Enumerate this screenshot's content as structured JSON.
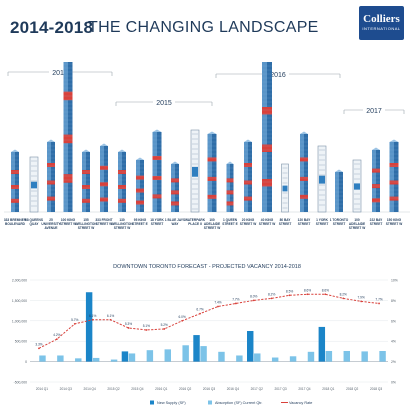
{
  "header": {
    "title_years": "2014-2018",
    "title_text": "THE CHANGING LANDSCAPE",
    "logo_name": "Colliers",
    "logo_sub": "INTERNATIONAL"
  },
  "skyline": {
    "year_labels": [
      "2014",
      "2015",
      "2016",
      "2017"
    ],
    "towers": [
      {
        "name": "333 BREMNER BOULEVARD",
        "status": "new-build"
      },
      {
        "name": "88 QUEENS QUAY",
        "status": "renovation"
      },
      {
        "name": "25 UNIVERSITY AVENUE",
        "status": "new-build"
      },
      {
        "name": "100 KING STREET W",
        "status": "new-build"
      },
      {
        "name": "155 WELLINGTON STREET W",
        "status": "new-build"
      },
      {
        "name": "333 FRONT STREET W",
        "status": "new-build"
      },
      {
        "name": "130 WELLINGTON STREET W",
        "status": "new-build"
      },
      {
        "name": "95 KING STREET E",
        "status": "new-build"
      },
      {
        "name": "18 YORK STREET",
        "status": "new-build"
      },
      {
        "name": "1 BLUE JAYS WAY",
        "status": "new-build"
      },
      {
        "name": "WATERPARK PLACE II",
        "status": "renovation"
      },
      {
        "name": "100 ADELAIDE STREET W",
        "status": "new-build"
      },
      {
        "name": "1 QUEEN STREET E",
        "status": "new-build"
      },
      {
        "name": "20 KING STREET W",
        "status": "new-build"
      },
      {
        "name": "40 KING STREET W",
        "status": "new-build"
      },
      {
        "name": "80 BAY STREET",
        "status": "renovation"
      },
      {
        "name": "120 BAY STREET",
        "status": "new-build"
      },
      {
        "name": "1 YORK STREET",
        "status": "renovation"
      },
      {
        "name": "1 TORONTO STREET",
        "status": "new-build"
      },
      {
        "name": "100 ADELAIDE STREET W",
        "status": "renovation"
      },
      {
        "name": "222 BAY STREET",
        "status": "new-build"
      },
      {
        "name": "150 KING STREET W",
        "status": "new-build"
      }
    ]
  },
  "chart_data": {
    "type": "bar",
    "title": "DOWNTOWN TORONTO FORECAST - PROJECTED VACANCY 2014-2018",
    "categories": [
      "2014 Q1",
      "2014 Q2",
      "2014 Q3",
      "2014 Q4",
      "2015 Q1",
      "2015 Q2",
      "2015 Q3",
      "2015 Q4",
      "2016 Q1",
      "2016 Q2",
      "2016 Q3",
      "2016 Q4",
      "2017 Q1",
      "2017 Q2",
      "2017 Q3",
      "2017 Q4",
      "2018 Q1",
      "2018 Q2",
      "2018 Q3",
      "2018 Q4"
    ],
    "x_tick_labels": [
      "2014 Q1",
      "2014 Q3",
      "2014 Q4",
      "2015 Q2",
      "2015 Q4",
      "2016 Q1",
      "2016 Q2",
      "2016 Q3",
      "2016 Q4",
      "2017 Q2",
      "2017 Q3",
      "2017 Q4",
      "2018 Q1",
      "2018 Q2",
      "2018 Q3"
    ],
    "y_tick_labels": [
      "2,000,000",
      "1,500,000",
      "1,000,000",
      "500,000",
      "0",
      "-500,000"
    ],
    "y2_tick_labels": [
      "10%",
      "8%",
      "6%",
      "4%",
      "2%",
      "0%"
    ],
    "ylim": [
      -500000,
      2000000
    ],
    "y2lim": [
      0,
      10
    ],
    "series": [
      {
        "name": "New Supply (SF)",
        "color": "#1b85c8",
        "values": [
          0,
          0,
          0,
          1700000,
          0,
          250000,
          0,
          0,
          0,
          650000,
          0,
          0,
          750000,
          0,
          0,
          0,
          850000,
          0,
          0,
          0
        ]
      },
      {
        "name": "Absorption (SF) Current Qtr.",
        "color": "#7cc3e8",
        "values": [
          150000,
          150000,
          80000,
          90000,
          50000,
          200000,
          280000,
          300000,
          400000,
          380000,
          240000,
          150000,
          200000,
          100000,
          130000,
          240000,
          260000,
          260000,
          250000,
          260000
        ]
      },
      {
        "name": "Vacancy Rate",
        "color": "#d9413b",
        "values": [
          3.3,
          4.2,
          5.7,
          6.1,
          6.1,
          5.3,
          5.1,
          5.2,
          6.0,
          6.7,
          7.4,
          7.7,
          8.0,
          8.2,
          8.5,
          8.6,
          8.6,
          8.2,
          7.9,
          7.7
        ]
      }
    ],
    "vacancy_point_labels": [
      "3.3%",
      "4.2%",
      "5.7%",
      "6.1%",
      "6.1%",
      "5.3%",
      "5.1%",
      "5.2%",
      "6.0%",
      "6.7%",
      "7.4%",
      "7.7%",
      "8.0%",
      "8.2%",
      "8.5%",
      "8.6%",
      "8.6%",
      "8.2%",
      "7.9%",
      "7.7%"
    ],
    "legend_position": "bottom"
  }
}
